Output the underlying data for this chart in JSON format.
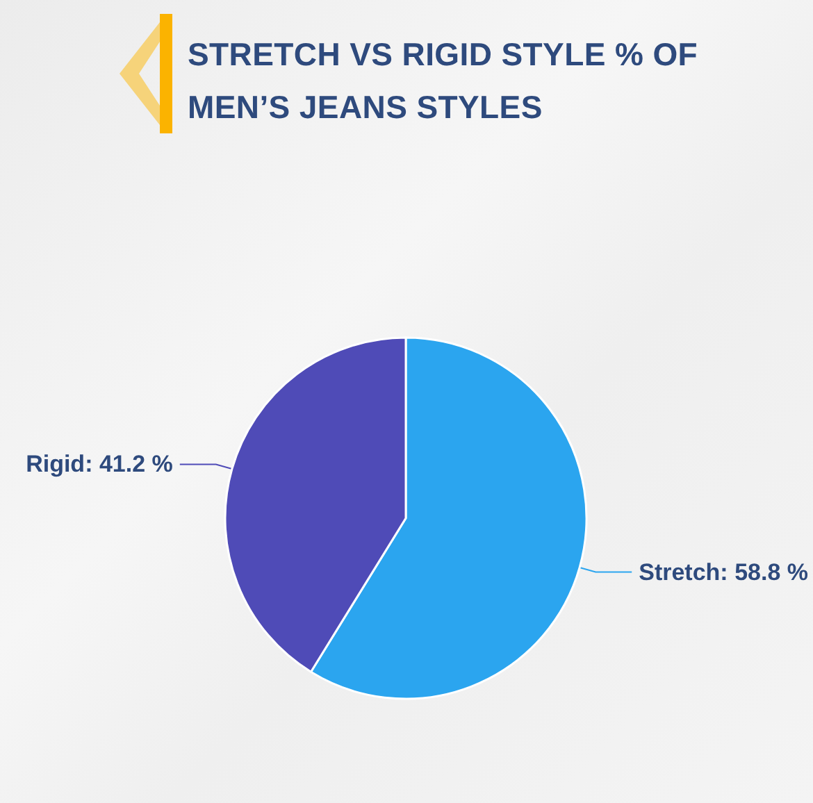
{
  "chart_data": {
    "type": "pie",
    "title": "STRETCH VS RIGID STYLE % OF MEN’S JEANS STYLES",
    "categories": [
      "Stretch",
      "Rigid"
    ],
    "values": [
      58.8,
      41.2
    ],
    "colors": [
      "#2ba5ef",
      "#4f4bb7"
    ],
    "value_labels": [
      "58.8 %",
      "41.2 %"
    ]
  }
}
